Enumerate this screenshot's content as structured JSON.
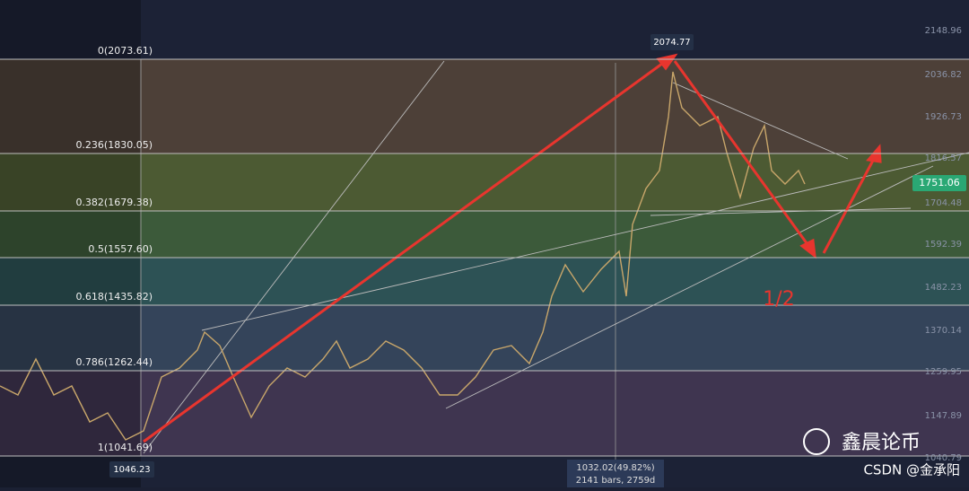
{
  "fib_levels": [
    "0(2073.61)",
    "0.236(1830.05)",
    "0.382(1679.38)",
    "0.5(1557.60)",
    "0.618(1435.82)",
    "0.786(1262.44)",
    "1(1041.69)"
  ],
  "price_axis": [
    "2148.96",
    "2036.82",
    "1926.73",
    "1816.57",
    "1704.48",
    "1592.39",
    "1482.23",
    "1370.14",
    "1259.95",
    "1147.89",
    "1040.79"
  ],
  "current_price": "1751.06",
  "high_label": "2074.77",
  "low_label": "1046.23",
  "measure": {
    "change": "1032.02(49.82%)",
    "span": "2141 bars, 2759d"
  },
  "annotation": "1/2",
  "watermark": {
    "account": "鑫晨论币",
    "source": "CSDN @金承阳"
  }
}
